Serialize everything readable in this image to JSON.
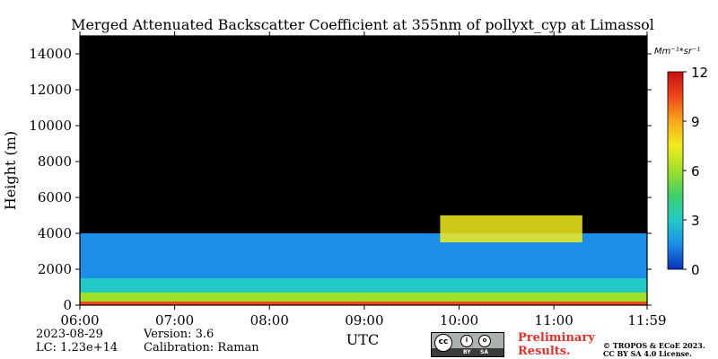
{
  "chart_data": {
    "type": "heatmap",
    "title": "Merged Attenuated Backscatter Coefficient at 355nm of pollyxt_cyp at Limassol",
    "ylabel": "Height (m)",
    "xlabel": "UTC",
    "x_ticks": [
      "06:00",
      "07:00",
      "08:00",
      "09:00",
      "10:00",
      "11:00",
      "11:59"
    ],
    "x_tick_hours": [
      6.0,
      7.0,
      8.0,
      9.0,
      10.0,
      11.0,
      11.983
    ],
    "xlim": [
      6.0,
      11.983
    ],
    "y_ticks": [
      "0",
      "2000",
      "4000",
      "6000",
      "8000",
      "10000",
      "12000",
      "14000"
    ],
    "y_tick_values": [
      0,
      2000,
      4000,
      6000,
      8000,
      10000,
      12000,
      14000
    ],
    "ylim": [
      0,
      15000
    ],
    "colorbar": {
      "unit": "Mm⁻¹*sr⁻¹",
      "ticks": [
        "0",
        "3",
        "6",
        "9",
        "12"
      ],
      "range": [
        0,
        12
      ],
      "colors": [
        "#0a2fb8",
        "#1c8ee8",
        "#22c9c6",
        "#3fcf6a",
        "#9ee02a",
        "#f2ec1c",
        "#f9a81a",
        "#f0461a",
        "#c81010"
      ]
    },
    "layers": [
      {
        "from_m": 0,
        "to_m": 200,
        "level": 11.0
      },
      {
        "from_m": 200,
        "to_m": 700,
        "level": 6.5
      },
      {
        "from_m": 700,
        "to_m": 1500,
        "level": 2.6
      },
      {
        "from_m": 1500,
        "to_m": 4000,
        "level": 1.6
      }
    ],
    "cloud_layer": {
      "start_hour": 9.8,
      "end_hour": 11.3,
      "base_m": 3500,
      "top_m": 5000,
      "level": 7.5
    },
    "background_color": "#000000"
  },
  "footer": {
    "date": "2023-08-29",
    "lc": "LC: 1.23e+14",
    "version": "Version: 3.6",
    "calibration": "Calibration: Raman",
    "preliminary_line1": "Preliminary",
    "preliminary_line2": "Results.",
    "copyright_line1": "© TROPOS & ECoE 2023.",
    "copyright_line2": "CC BY SA 4.0 License.",
    "license_badge": {
      "left": "BY",
      "right": "SA"
    }
  }
}
